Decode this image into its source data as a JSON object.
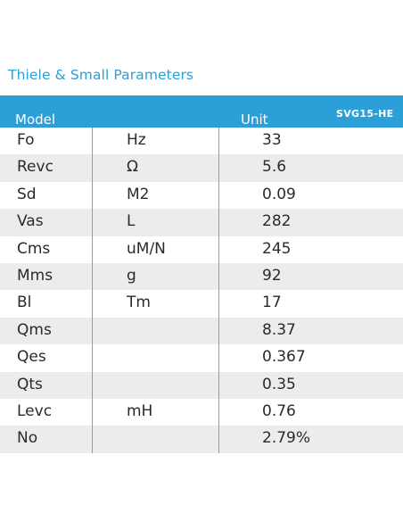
{
  "title": "Thiele & Small Parameters",
  "header": {
    "model_label": "Model",
    "unit_label": "Unit",
    "model_name": "SVG15-HE"
  },
  "rows": [
    {
      "name": "Fo",
      "unit": "Hz",
      "value": "33"
    },
    {
      "name": "Revc",
      "unit": "Ω",
      "value": "5.6"
    },
    {
      "name": "Sd",
      "unit": "M2",
      "value": "0.09"
    },
    {
      "name": "Vas",
      "unit": "L",
      "value": "282"
    },
    {
      "name": "Cms",
      "unit": "uM/N",
      "value": "245"
    },
    {
      "name": "Mms",
      "unit": "g",
      "value": "92"
    },
    {
      "name": "Bl",
      "unit": "Tm",
      "value": "17"
    },
    {
      "name": "Qms",
      "unit": "",
      "value": "8.37"
    },
    {
      "name": "Qes",
      "unit": "",
      "value": "0.367"
    },
    {
      "name": "Qts",
      "unit": "",
      "value": "0.35"
    },
    {
      "name": "Levc",
      "unit": "mH",
      "value": "0.76"
    },
    {
      "name": "No",
      "unit": "",
      "value": "2.79%"
    }
  ]
}
